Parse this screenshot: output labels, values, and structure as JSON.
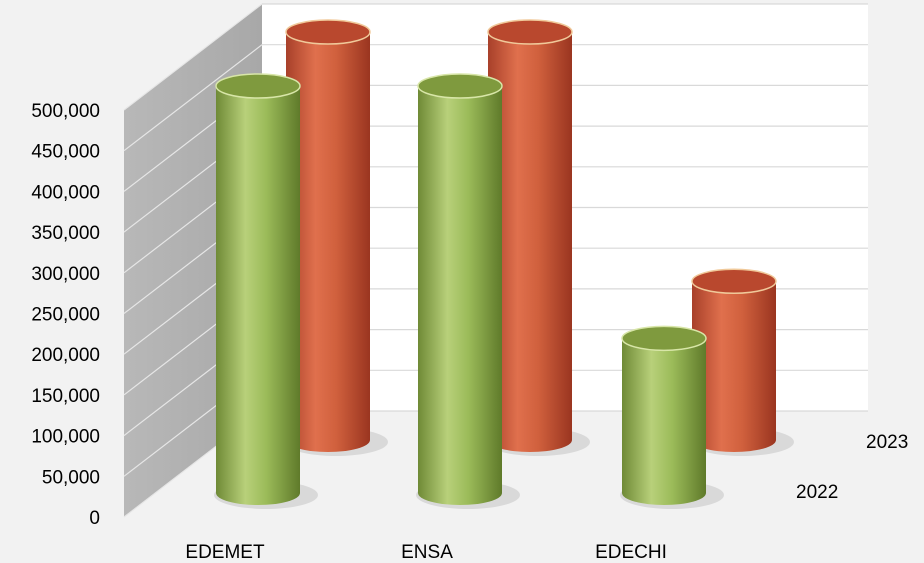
{
  "chart_data": {
    "type": "bar",
    "style": "3d-cylinder",
    "categories": [
      "EDEMET",
      "ENSA",
      "EDECHI"
    ],
    "series": [
      {
        "name": "2022",
        "values": [
          510000,
          520000,
          190000
        ],
        "color": "#9bbb59"
      },
      {
        "name": "2023",
        "values": [
          515000,
          520000,
          195000
        ],
        "color": "#c0504d"
      }
    ],
    "y_ticks": [
      "0",
      "50,000",
      "100,000",
      "150,000",
      "200,000",
      "250,000",
      "300,000",
      "350,000",
      "400,000",
      "450,000",
      "500,000"
    ],
    "ylim": [
      0,
      500000
    ],
    "grid": true,
    "legend": "none",
    "title": "",
    "xlabel": "",
    "ylabel": ""
  }
}
